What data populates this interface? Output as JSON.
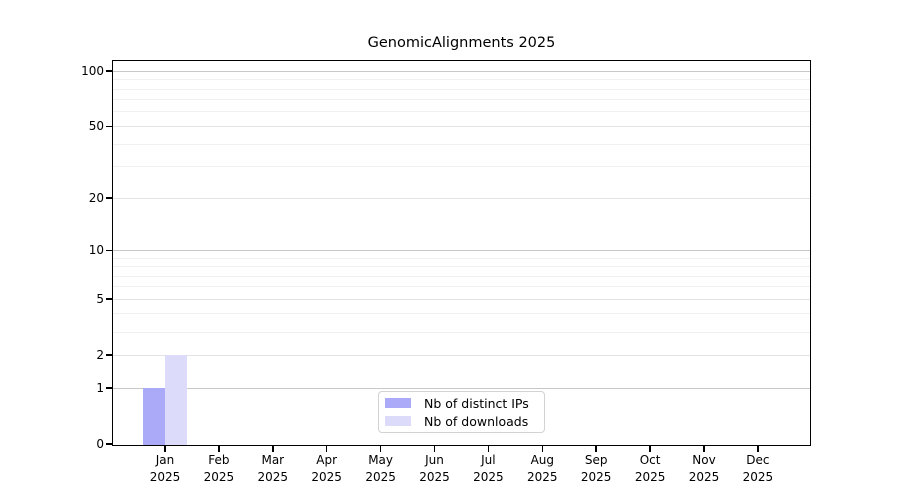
{
  "title": "GenomicAlignments 2025",
  "chart_data": {
    "type": "bar",
    "title": "GenomicAlignments 2025",
    "categories": [
      "Jan 2025",
      "Feb 2025",
      "Mar 2025",
      "Apr 2025",
      "May 2025",
      "Jun 2025",
      "Jul 2025",
      "Aug 2025",
      "Sep 2025",
      "Oct 2025",
      "Nov 2025",
      "Dec 2025"
    ],
    "x_tick_months": [
      "Jan",
      "Feb",
      "Mar",
      "Apr",
      "May",
      "Jun",
      "Jul",
      "Aug",
      "Sep",
      "Oct",
      "Nov",
      "Dec"
    ],
    "x_tick_year": "2025",
    "series": [
      {
        "name": "Nb of distinct IPs",
        "color": "#aaaaf8",
        "values": [
          1,
          0,
          0,
          0,
          0,
          0,
          0,
          0,
          0,
          0,
          0,
          0
        ]
      },
      {
        "name": "Nb of downloads",
        "color": "#dcdcfa",
        "values": [
          2,
          0,
          0,
          0,
          0,
          0,
          0,
          0,
          0,
          0,
          0,
          0
        ]
      }
    ],
    "xlabel": "",
    "ylabel": "",
    "yscale": "log1p",
    "y_ticks": [
      0,
      1,
      2,
      5,
      10,
      20,
      50,
      100
    ],
    "ylim": [
      0,
      113
    ],
    "grid": {
      "major_ticks": [
        1,
        10,
        100
      ],
      "mid_ticks": [
        2,
        5,
        20,
        50
      ],
      "minor_ticks": [
        3,
        4,
        6,
        7,
        8,
        9,
        30,
        40,
        60,
        70,
        80,
        90
      ],
      "major_color": "#c7c7c7",
      "mid_color": "#e3e3e3",
      "minor_color": "#f0f0f0"
    },
    "legend": {
      "position": "bottom-center",
      "entries": [
        "Nb of distinct IPs",
        "Nb of downloads"
      ]
    }
  }
}
